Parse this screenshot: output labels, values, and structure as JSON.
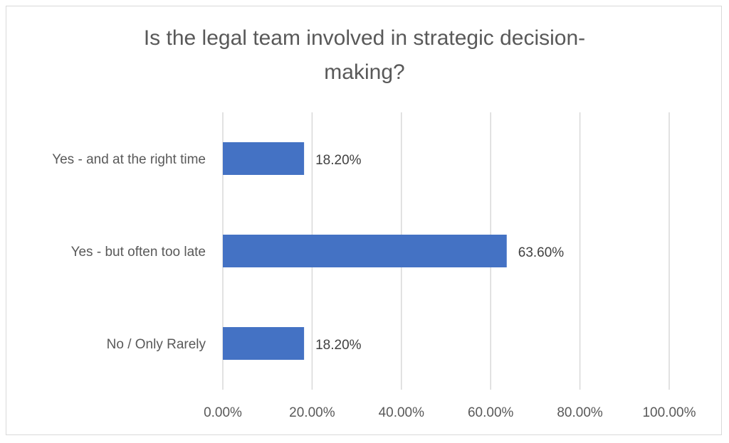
{
  "chart_data": {
    "type": "bar",
    "orientation": "horizontal",
    "title_lines": [
      "Is the legal team involved in strategic decision-",
      "making?"
    ],
    "categories": [
      "Yes - and at the right time",
      "Yes - but often too late",
      "No / Only Rarely"
    ],
    "values": [
      18.2,
      63.6,
      18.2
    ],
    "data_labels": [
      "18.20%",
      "63.60%",
      "18.20%"
    ],
    "xlim": [
      0,
      100
    ],
    "x_ticks": [
      0,
      20,
      40,
      60,
      80,
      100
    ],
    "x_tick_labels": [
      "0.00%",
      "20.00%",
      "40.00%",
      "60.00%",
      "80.00%",
      "100.00%"
    ],
    "xlabel": "",
    "ylabel": "",
    "grid": "vertical",
    "legend": "none",
    "bar_color": "#4472c4",
    "grid_color": "#d9d9d9"
  }
}
